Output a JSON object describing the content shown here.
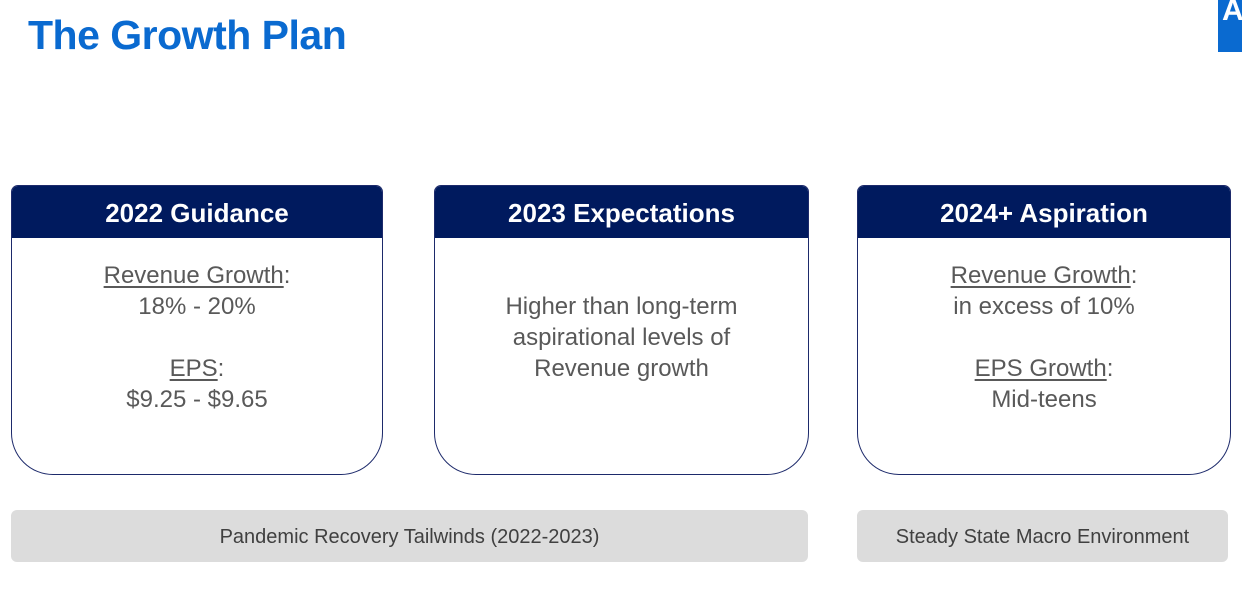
{
  "title": "The Growth Plan",
  "logo_text": "A",
  "colors": {
    "title": "#0a6ad0",
    "header": "#001a5e",
    "bar": "#dcdcdc",
    "text": "#595959"
  },
  "cards": [
    {
      "header": "2022 Guidance",
      "l1_label": "Revenue Growth",
      "l1_value": "18% - 20%",
      "l2_label": "EPS",
      "l2_value": "$9.25 - $9.65"
    },
    {
      "header": "2023 Expectations",
      "lines": [
        "Higher than long-term",
        "aspirational levels of",
        "Revenue growth"
      ]
    },
    {
      "header": "2024+ Aspiration",
      "l1_label": "Revenue Growth",
      "l1_value": "in excess of 10%",
      "l2_label": "EPS Growth",
      "l2_value": "Mid-teens"
    }
  ],
  "colon": ":",
  "bars": [
    "Pandemic Recovery Tailwinds (2022-2023)",
    "Steady State Macro Environment"
  ]
}
